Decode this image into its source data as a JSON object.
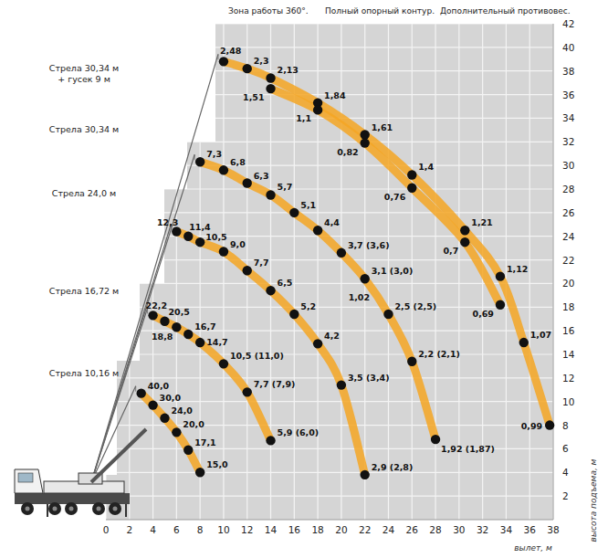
{
  "chart_data": {
    "type": "line",
    "header": [
      "Зона работы 360°.",
      "Полный опорный контур.",
      "Дополнительный противовес."
    ],
    "x_label": "вылет, м",
    "y_label": "высота подъема, м",
    "xlim": [
      0,
      38
    ],
    "xticks": [
      0,
      2,
      4,
      6,
      8,
      10,
      12,
      14,
      16,
      18,
      20,
      22,
      24,
      26,
      28,
      30,
      32,
      34,
      36,
      38
    ],
    "ylim": [
      0,
      42
    ],
    "yticks": [
      2,
      4,
      6,
      8,
      10,
      12,
      14,
      16,
      18,
      20,
      22,
      24,
      26,
      28,
      30,
      32,
      34,
      36,
      38,
      40,
      42
    ],
    "grid": true,
    "color": "#f5a623",
    "marker": "circle",
    "data_labels": true,
    "series": [
      {
        "name": "Стрела 30,34 м + гусек 9 м",
        "x": [
          10,
          12,
          14,
          18,
          22,
          26,
          30.5,
          33.5,
          35.5,
          37.7
        ],
        "y": [
          38.8,
          38.2,
          37.4,
          35.3,
          32.6,
          29.2,
          24.5,
          20.6,
          15.0,
          8.0
        ],
        "values": [
          2.48,
          2.3,
          2.13,
          1.84,
          1.61,
          1.4,
          1.21,
          1.12,
          1.07,
          0.99
        ],
        "value_labels": [
          "2,48",
          "2,3",
          "2,13",
          "1,84",
          "1,61",
          "1,4",
          "1,21",
          "1,12",
          "1,07",
          "0,99"
        ]
      },
      {
        "x": [
          14,
          18,
          22,
          26,
          30.5,
          33.5
        ],
        "y": [
          36.5,
          34.7,
          31.9,
          28.1,
          23.5,
          18.2
        ],
        "values": [
          1.51,
          1.1,
          0.82,
          0.76,
          0.7,
          0.69
        ],
        "value_labels": [
          "1,51",
          "1,1",
          "0,82",
          "0,76",
          "0,7",
          "0,69"
        ]
      },
      {
        "name": "Стрела 30,34 м",
        "x": [
          8,
          10,
          12,
          14,
          16,
          18,
          20,
          22,
          24,
          26,
          28
        ],
        "y": [
          30.3,
          29.6,
          28.5,
          27.5,
          26.0,
          24.5,
          22.6,
          20.4,
          17.4,
          13.4,
          6.8
        ],
        "values": [
          7.3,
          6.8,
          6.3,
          5.7,
          5.1,
          4.4,
          3.7,
          3.1,
          2.5,
          2.2,
          1.92
        ],
        "value_labels": [
          "7,3",
          "6,8",
          "6,3",
          "5,7",
          "5,1",
          "4,4",
          "3,7 (3,6)",
          "3,1 (3,0)",
          "2,5 (2,5)",
          "2,2 (2,1)",
          "1,92 (1,87)"
        ]
      },
      {
        "name": "Стрела 24,0 м",
        "x": [
          6,
          7,
          8,
          10,
          12,
          14,
          16,
          18,
          20,
          22
        ],
        "y": [
          24.4,
          24.0,
          23.5,
          22.7,
          21.1,
          19.4,
          17.4,
          14.9,
          11.4,
          3.8
        ],
        "values": [
          12.3,
          11.4,
          10.5,
          9.0,
          7.7,
          6.5,
          5.2,
          4.2,
          3.5,
          2.9
        ],
        "value_labels": [
          "12,3",
          "11,4",
          "10,5",
          "9,0",
          "7,7",
          "6,5",
          "5,2",
          "4,2",
          "3,5 (3,4)",
          "2,9 (2,8)"
        ]
      },
      {
        "name": "Стрела 16,72 м",
        "x": [
          4,
          5,
          6,
          7,
          8,
          10,
          12,
          14
        ],
        "y": [
          17.3,
          16.8,
          16.3,
          15.7,
          15.0,
          13.2,
          10.8,
          6.7
        ],
        "values": [
          22.2,
          20.5,
          18.8,
          16.7,
          14.7,
          10.5,
          7.7,
          5.9
        ],
        "value_labels": [
          "22,2",
          "20,5",
          "18,8",
          "16,7",
          "14,7",
          "10,5 (11,0)",
          "7,7 (7,9)",
          "5,9 (6,0)"
        ]
      },
      {
        "name": "Стрела 10,16 м",
        "x": [
          3,
          4,
          5,
          6,
          7,
          8
        ],
        "y": [
          10.7,
          9.7,
          8.6,
          7.4,
          5.9,
          4.0
        ],
        "values": [
          40.0,
          30.0,
          24.0,
          20.0,
          17.1,
          15.0
        ],
        "value_labels": [
          "40,0",
          "30,0",
          "24,0",
          "20,0",
          "17,1",
          "15,0"
        ]
      }
    ],
    "annotations": [
      {
        "text": "1,02",
        "x": 20.6,
        "y": 18.6
      }
    ]
  }
}
